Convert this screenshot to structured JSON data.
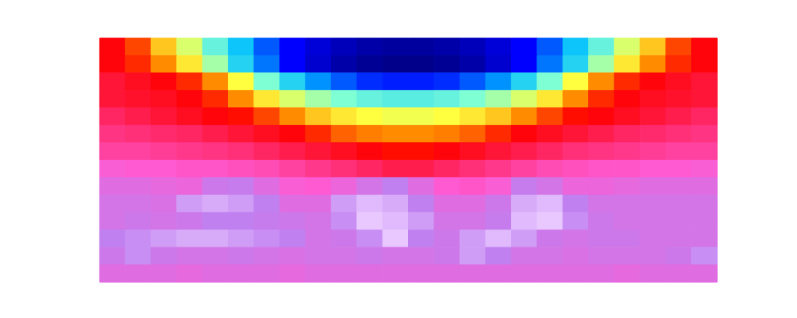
{
  "chart_data": {
    "type": "heatmap",
    "xlim": [
      0,
      24
    ],
    "ylim": [
      0,
      14
    ],
    "xticks": [],
    "yticks": [],
    "tick_labels": false,
    "grid": false,
    "color_range": [
      0,
      1
    ],
    "cells": [
      [
        0.66,
        0.6,
        0.5,
        0.42,
        0.33,
        0.26,
        0.18,
        0.12,
        0.08,
        0.05,
        0.03,
        0.02,
        0.02,
        0.03,
        0.05,
        0.08,
        0.12,
        0.18,
        0.26,
        0.33,
        0.42,
        0.5,
        0.6,
        0.66
      ],
      [
        0.66,
        0.62,
        0.55,
        0.47,
        0.38,
        0.28,
        0.2,
        0.12,
        0.07,
        0.03,
        0.01,
        0.0,
        0.0,
        0.01,
        0.03,
        0.07,
        0.12,
        0.2,
        0.28,
        0.38,
        0.47,
        0.55,
        0.62,
        0.66
      ],
      [
        0.7,
        0.68,
        0.66,
        0.62,
        0.55,
        0.45,
        0.35,
        0.28,
        0.22,
        0.18,
        0.15,
        0.14,
        0.14,
        0.15,
        0.18,
        0.22,
        0.28,
        0.35,
        0.45,
        0.55,
        0.62,
        0.66,
        0.68,
        0.7
      ],
      [
        0.7,
        0.69,
        0.68,
        0.66,
        0.62,
        0.55,
        0.47,
        0.42,
        0.38,
        0.35,
        0.33,
        0.32,
        0.32,
        0.33,
        0.35,
        0.38,
        0.42,
        0.47,
        0.55,
        0.62,
        0.66,
        0.68,
        0.69,
        0.7
      ],
      [
        0.74,
        0.72,
        0.7,
        0.68,
        0.66,
        0.64,
        0.6,
        0.55,
        0.5,
        0.47,
        0.45,
        0.44,
        0.44,
        0.45,
        0.47,
        0.5,
        0.55,
        0.6,
        0.64,
        0.66,
        0.68,
        0.7,
        0.72,
        0.74
      ],
      [
        0.77,
        0.76,
        0.75,
        0.74,
        0.72,
        0.7,
        0.68,
        0.66,
        0.62,
        0.58,
        0.56,
        0.55,
        0.55,
        0.56,
        0.58,
        0.62,
        0.66,
        0.68,
        0.7,
        0.72,
        0.74,
        0.75,
        0.76,
        0.77
      ],
      [
        0.8,
        0.8,
        0.79,
        0.78,
        0.77,
        0.76,
        0.74,
        0.72,
        0.7,
        0.68,
        0.66,
        0.64,
        0.64,
        0.66,
        0.68,
        0.7,
        0.72,
        0.74,
        0.76,
        0.77,
        0.78,
        0.79,
        0.8,
        0.8
      ],
      [
        0.86,
        0.85,
        0.85,
        0.84,
        0.84,
        0.83,
        0.82,
        0.8,
        0.78,
        0.76,
        0.74,
        0.72,
        0.72,
        0.74,
        0.76,
        0.78,
        0.8,
        0.82,
        0.83,
        0.84,
        0.84,
        0.85,
        0.85,
        0.86
      ],
      [
        0.9,
        0.9,
        0.89,
        0.88,
        0.93,
        0.94,
        0.9,
        0.86,
        0.85,
        0.88,
        0.92,
        0.95,
        0.9,
        0.85,
        0.84,
        0.86,
        0.94,
        0.92,
        0.88,
        0.88,
        0.89,
        0.9,
        0.9,
        0.9
      ],
      [
        0.92,
        0.92,
        0.91,
        0.97,
        0.98,
        0.97,
        0.95,
        0.9,
        0.9,
        0.97,
        0.99,
        0.98,
        0.95,
        0.9,
        0.9,
        0.93,
        0.98,
        0.99,
        0.95,
        0.92,
        0.92,
        0.92,
        0.92,
        0.92
      ],
      [
        0.92,
        0.93,
        0.92,
        0.93,
        0.95,
        0.95,
        0.94,
        0.93,
        0.92,
        0.96,
        1.0,
        0.99,
        0.97,
        0.92,
        0.92,
        0.94,
        0.99,
        1.0,
        0.96,
        0.93,
        0.92,
        0.92,
        0.92,
        0.92
      ],
      [
        0.95,
        0.96,
        0.97,
        0.98,
        0.98,
        0.97,
        0.96,
        0.95,
        0.92,
        0.93,
        0.96,
        1.0,
        0.95,
        0.93,
        0.97,
        0.99,
        0.97,
        0.93,
        0.92,
        0.93,
        0.93,
        0.92,
        0.92,
        0.92
      ],
      [
        0.93,
        0.96,
        0.93,
        0.92,
        0.92,
        0.93,
        0.92,
        0.91,
        0.92,
        0.92,
        0.93,
        0.92,
        0.92,
        0.93,
        0.97,
        0.95,
        0.92,
        0.92,
        0.91,
        0.92,
        0.92,
        0.92,
        0.93,
        0.96
      ],
      [
        0.9,
        0.9,
        0.9,
        0.89,
        0.9,
        0.9,
        0.9,
        0.89,
        0.9,
        0.9,
        0.9,
        0.9,
        0.9,
        0.9,
        0.9,
        0.9,
        0.9,
        0.9,
        0.9,
        0.9,
        0.89,
        0.9,
        0.9,
        0.9
      ]
    ]
  }
}
